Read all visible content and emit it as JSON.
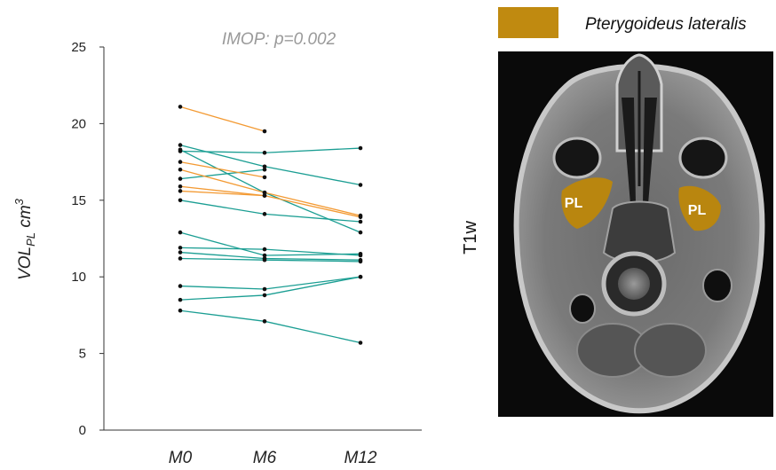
{
  "chart_data": {
    "type": "line",
    "title": "IMOP: p=0.002",
    "ylabel_main": "VOL",
    "ylabel_sub": "PL",
    "ylabel_unit": "cm",
    "ylabel_sup": "3",
    "categories": [
      "M0",
      "M6",
      "M12"
    ],
    "ylim": [
      0,
      25
    ],
    "yticks": [
      0,
      5,
      10,
      15,
      20,
      25
    ],
    "grid": false,
    "series": [
      {
        "group": "orange",
        "values": [
          21.1,
          19.5,
          null
        ]
      },
      {
        "group": "orange",
        "values": [
          17.5,
          16.5,
          null
        ]
      },
      {
        "group": "orange",
        "values": [
          17.0,
          15.5,
          14.0
        ]
      },
      {
        "group": "orange",
        "values": [
          15.9,
          15.3,
          null
        ]
      },
      {
        "group": "orange",
        "values": [
          15.6,
          15.3,
          13.9
        ]
      },
      {
        "group": "teal",
        "values": [
          18.6,
          17.2,
          16.0
        ]
      },
      {
        "group": "teal",
        "values": [
          18.2,
          18.1,
          18.4
        ]
      },
      {
        "group": "teal",
        "values": [
          16.4,
          17.0,
          null
        ]
      },
      {
        "group": "teal",
        "values": [
          18.3,
          15.5,
          12.9
        ]
      },
      {
        "group": "teal",
        "values": [
          15.0,
          14.1,
          13.6
        ]
      },
      {
        "group": "teal",
        "values": [
          12.9,
          11.4,
          11.5
        ]
      },
      {
        "group": "teal",
        "values": [
          11.9,
          11.8,
          11.4
        ]
      },
      {
        "group": "teal",
        "values": [
          11.6,
          11.2,
          11.1
        ]
      },
      {
        "group": "teal",
        "values": [
          11.2,
          11.1,
          11.0
        ]
      },
      {
        "group": "teal",
        "values": [
          9.4,
          9.2,
          10.0
        ]
      },
      {
        "group": "teal",
        "values": [
          8.5,
          8.8,
          10.0
        ]
      },
      {
        "group": "teal",
        "values": [
          7.8,
          7.1,
          5.7
        ]
      }
    ],
    "colors": {
      "orange": "#f39a33",
      "teal": "#1b9e93",
      "point": "#111111"
    }
  },
  "legend": {
    "label": "Pterygoideus lateralis",
    "color": "#c08a10"
  },
  "image_panel": {
    "sequence": "T1w",
    "region_label": "PL",
    "region_color": "#b9860f"
  }
}
